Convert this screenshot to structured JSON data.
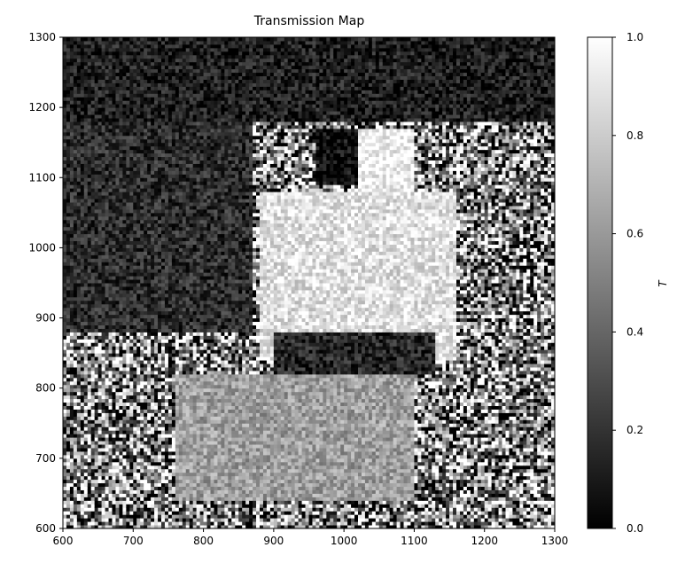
{
  "chart_data": {
    "type": "heatmap",
    "title": "Transmission Map",
    "xlabel": "",
    "ylabel": "",
    "xlim": [
      600,
      1300
    ],
    "ylim": [
      600,
      1300
    ],
    "x_ticks": [
      600,
      700,
      800,
      900,
      1000,
      1100,
      1200,
      1300
    ],
    "y_ticks": [
      600,
      700,
      800,
      900,
      1000,
      1100,
      1200,
      1300
    ],
    "x_tick_labels": [
      "600",
      "700",
      "800",
      "900",
      "1000",
      "1100",
      "1200",
      "1300"
    ],
    "y_tick_labels": [
      "600",
      "700",
      "800",
      "900",
      "1000",
      "1100",
      "1200",
      "1300"
    ],
    "colormap": "gray",
    "colorbar": {
      "label": "T",
      "range": [
        0.0,
        1.0
      ],
      "ticks": [
        0.0,
        0.2,
        0.4,
        0.6,
        0.8,
        1.0
      ],
      "tick_labels": [
        "0.0",
        "0.2",
        "0.4",
        "0.6",
        "0.8",
        "1.0"
      ]
    },
    "regions": [
      {
        "name": "dark-upper-band",
        "x": [
          600,
          1300
        ],
        "y": [
          1180,
          1300
        ],
        "value": 0.12
      },
      {
        "name": "dark-upper-left-lobe",
        "x": [
          600,
          870
        ],
        "y": [
          880,
          1180
        ],
        "value": 0.18
      },
      {
        "name": "bright-core",
        "x": [
          880,
          1160
        ],
        "y": [
          840,
          1080
        ],
        "value": 0.88
      },
      {
        "name": "dark-hole-top",
        "x": [
          960,
          1060
        ],
        "y": [
          1090,
          1170
        ],
        "value": 0.05
      },
      {
        "name": "bright-cap-top",
        "x": [
          1020,
          1100
        ],
        "y": [
          1080,
          1170
        ],
        "value": 0.95
      },
      {
        "name": "dark-streak",
        "x": [
          900,
          1130
        ],
        "y": [
          820,
          880
        ],
        "value": 0.15
      },
      {
        "name": "mid-gray-lower",
        "x": [
          760,
          1100
        ],
        "y": [
          640,
          820
        ],
        "value": 0.62
      },
      {
        "name": "noisy-edges",
        "x": [
          600,
          1300
        ],
        "y": [
          600,
          1300
        ],
        "value": 0.5
      }
    ]
  }
}
